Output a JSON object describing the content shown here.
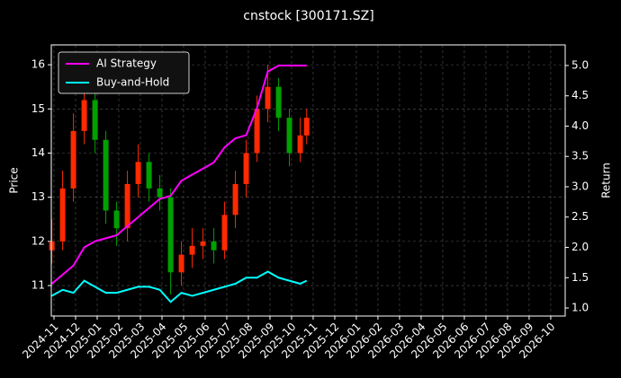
{
  "chart_data": {
    "type": "candlestick",
    "title": "cnstock [300171.SZ]",
    "y_label": "Price",
    "y2_label": "Return",
    "x": [
      -0.1,
      0.4,
      0.9,
      1.4,
      1.9,
      2.4,
      2.9,
      3.4,
      3.9,
      4.4,
      4.9,
      5.4,
      5.9,
      6.4,
      6.9,
      7.4,
      7.9,
      8.4,
      8.9,
      9.4,
      9.9,
      10.4,
      10.9,
      11.4,
      11.7
    ],
    "open": [
      11.8,
      12.0,
      13.2,
      14.5,
      15.2,
      14.3,
      12.7,
      12.3,
      13.3,
      13.8,
      13.2,
      13.0,
      11.3,
      11.7,
      11.9,
      12.0,
      11.8,
      12.6,
      13.3,
      14.0,
      15.0,
      15.5,
      14.8,
      14.0,
      14.4
    ],
    "high": [
      12.5,
      13.6,
      14.9,
      15.6,
      15.4,
      14.5,
      12.9,
      13.6,
      14.2,
      14.0,
      13.5,
      13.2,
      12.0,
      12.3,
      12.3,
      12.3,
      12.9,
      13.6,
      14.3,
      15.3,
      16.0,
      15.7,
      15.0,
      14.8,
      15.0
    ],
    "low": [
      11.5,
      11.8,
      12.9,
      14.2,
      14.0,
      12.4,
      11.9,
      12.0,
      13.0,
      12.9,
      12.7,
      10.8,
      11.0,
      11.4,
      11.6,
      11.5,
      11.6,
      12.3,
      13.0,
      13.8,
      14.7,
      14.5,
      13.7,
      13.8,
      14.2
    ],
    "close": [
      12.0,
      13.2,
      14.5,
      15.2,
      14.3,
      12.7,
      12.3,
      13.3,
      13.8,
      13.2,
      13.0,
      11.3,
      11.7,
      11.9,
      12.0,
      11.8,
      12.6,
      13.3,
      14.0,
      15.0,
      15.5,
      14.8,
      14.0,
      14.4,
      14.8
    ],
    "up_color": "#ff2a00",
    "down_color": "#00a000",
    "series": [
      {
        "name": "AI Strategy",
        "color": "#ff00ff",
        "axis": "y2",
        "values": [
          1.4,
          1.55,
          1.7,
          2.0,
          2.1,
          2.15,
          2.2,
          2.35,
          2.5,
          2.65,
          2.8,
          2.85,
          3.1,
          3.2,
          3.3,
          3.4,
          3.65,
          3.8,
          3.85,
          4.3,
          4.9,
          5.0,
          5.0,
          5.0,
          5.0
        ]
      },
      {
        "name": "Buy-and-Hold",
        "color": "#00ffff",
        "axis": "y2",
        "values": [
          1.2,
          1.3,
          1.25,
          1.45,
          1.35,
          1.25,
          1.25,
          1.3,
          1.35,
          1.35,
          1.3,
          1.1,
          1.25,
          1.2,
          1.25,
          1.3,
          1.35,
          1.4,
          1.5,
          1.5,
          1.6,
          1.5,
          1.45,
          1.4,
          1.45
        ]
      }
    ],
    "xlim": [
      -0.125,
      23.67
    ],
    "xticks": [
      {
        "value": 0,
        "label": "2024-11"
      },
      {
        "value": 1,
        "label": "2024-12"
      },
      {
        "value": 2,
        "label": "2025-01"
      },
      {
        "value": 3,
        "label": "2025-02"
      },
      {
        "value": 4,
        "label": "2025-03"
      },
      {
        "value": 5,
        "label": "2025-04"
      },
      {
        "value": 6,
        "label": "2025-05"
      },
      {
        "value": 7,
        "label": "2025-06"
      },
      {
        "value": 8,
        "label": "2025-07"
      },
      {
        "value": 9,
        "label": "2025-08"
      },
      {
        "value": 10,
        "label": "2025-09"
      },
      {
        "value": 11,
        "label": "2025-10"
      },
      {
        "value": 12,
        "label": "2025-11"
      },
      {
        "value": 13,
        "label": "2025-12"
      },
      {
        "value": 14,
        "label": "2026-01"
      },
      {
        "value": 15,
        "label": "2026-02"
      },
      {
        "value": 16,
        "label": "2026-03"
      },
      {
        "value": 17,
        "label": "2026-04"
      },
      {
        "value": 18,
        "label": "2026-05"
      },
      {
        "value": 19,
        "label": "2026-06"
      },
      {
        "value": 20,
        "label": "2026-07"
      },
      {
        "value": 21,
        "label": "2026-08"
      },
      {
        "value": 22,
        "label": "2026-09"
      },
      {
        "value": 23,
        "label": "2026-10"
      }
    ],
    "ylim": [
      10.31,
      16.45
    ],
    "yticks": [
      11,
      12,
      13,
      14,
      15,
      16
    ],
    "y2lim": [
      0.867,
      5.34
    ],
    "y2ticks": [
      {
        "value": 1.0,
        "label": "1.0"
      },
      {
        "value": 1.5,
        "label": "1.5"
      },
      {
        "value": 2.0,
        "label": "2.0"
      },
      {
        "value": 2.5,
        "label": "2.5"
      },
      {
        "value": 3.0,
        "label": "3.0"
      },
      {
        "value": 3.5,
        "label": "3.5"
      },
      {
        "value": 4.0,
        "label": "4.0"
      },
      {
        "value": 4.5,
        "label": "4.5"
      },
      {
        "value": 5.0,
        "label": "5.0"
      }
    ],
    "grid": true,
    "legend": "upper left"
  }
}
